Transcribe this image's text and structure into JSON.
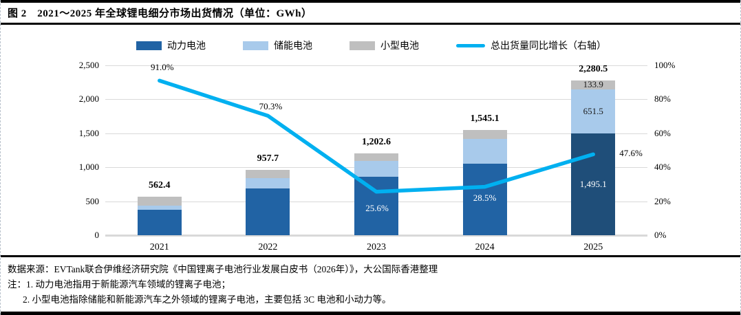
{
  "header": {
    "title": "图 2　2021～2025 年全球锂电细分市场出货情况（单位：GWh）"
  },
  "colors": {
    "power": "#2163A4",
    "power_2025": "#1F4E79",
    "storage": "#A8CAEB",
    "small": "#BFBFBF",
    "line": "#00B0F0",
    "grid": "#D9D9D9"
  },
  "legend": [
    {
      "label": "动力电池",
      "swatch": "power"
    },
    {
      "label": "储能电池",
      "swatch": "storage"
    },
    {
      "label": "小型电池",
      "swatch": "small"
    },
    {
      "label": "总出货量同比增长（右轴）",
      "swatch": "line"
    }
  ],
  "chart_data": {
    "type": "bar",
    "subtype": "stacked-bar-with-line",
    "categories": [
      "2021",
      "2022",
      "2023",
      "2024",
      "2025"
    ],
    "series": [
      {
        "name": "动力电池",
        "values": [
          371.0,
          684.2,
          865.2,
          1051.2,
          1495.1
        ]
      },
      {
        "name": "储能电池",
        "values": [
          66.3,
          159.3,
          224.2,
          369.8,
          651.5
        ]
      },
      {
        "name": "小型电池",
        "values": [
          125.1,
          114.2,
          113.2,
          124.1,
          133.9
        ]
      }
    ],
    "totals": [
      562.4,
      957.7,
      1202.6,
      1545.1,
      2280.5
    ],
    "total_labels": [
      "562.4",
      "957.7",
      "1,202.6",
      "1,545.1",
      "2,280.5"
    ],
    "line_series": {
      "name": "总出货量同比增长（右轴）",
      "values": [
        91.0,
        70.3,
        25.6,
        28.5,
        47.6
      ],
      "labels": [
        "91.0%",
        "70.3%",
        "25.6%",
        "28.5%",
        "47.6%"
      ]
    },
    "segment_labels_2025": [
      "1,495.1",
      "651.5",
      "133.9"
    ],
    "y_left": {
      "ticks": [
        "2,500",
        "2,000",
        "1,500",
        "1,000",
        "500",
        "0"
      ],
      "max": 2500,
      "min": 0
    },
    "y_right": {
      "ticks": [
        "100%",
        "80%",
        "60%",
        "40%",
        "20%",
        "0%"
      ],
      "max": 100,
      "min": 0
    },
    "title": "2021～2025 年全球锂电细分市场出货情况",
    "unit": "GWh",
    "grid": true,
    "legend_position": "top"
  },
  "footer": {
    "source": "数据来源：EVTank联合伊维经济研究院《中国锂离子电池行业发展白皮书（2026年）》，大公国际香港整理",
    "note1": "注：1. 动力电池指用于新能源汽车领域的锂离子电池；",
    "note2": "2. 小型电池指除储能和新能源汽车之外领域的锂离子电池，主要包括 3C 电池和小动力等。"
  }
}
